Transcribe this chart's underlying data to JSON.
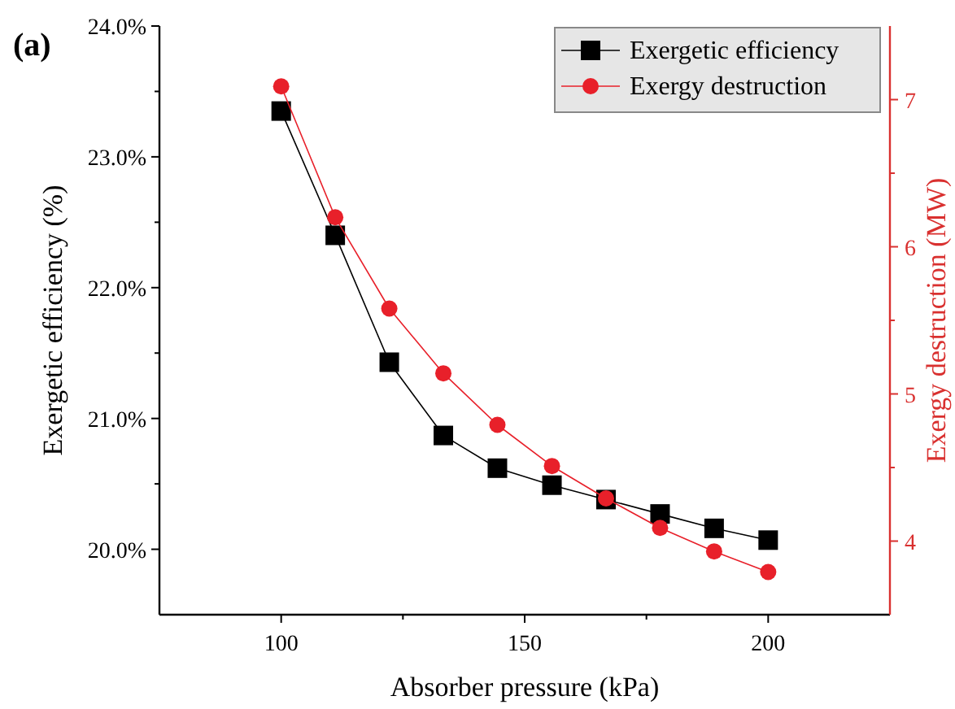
{
  "chart_data": {
    "type": "line",
    "xlabel": "Absorber pressure (kPa)",
    "ylabel": "Exergetic efficiency (%)",
    "y2label": "Exergy destruction (MW)",
    "annotations": [
      "(a)"
    ],
    "x": [
      100,
      111.1,
      122.2,
      133.3,
      144.4,
      155.6,
      166.7,
      177.8,
      188.9,
      200
    ],
    "xlim": [
      75,
      225
    ],
    "xticks": [
      100,
      {
        "value": 125,
        "label": null
      },
      150,
      {
        "value": 175,
        "label": null
      },
      200
    ],
    "ylim": [
      19.5,
      24
    ],
    "yticks": [
      {
        "value": 20,
        "label": "20.0%"
      },
      {
        "value": 20.5,
        "label": null
      },
      {
        "value": 21,
        "label": "21.0%"
      },
      {
        "value": 21.5,
        "label": null
      },
      {
        "value": 22,
        "label": "22.0%"
      },
      {
        "value": 22.5,
        "label": null
      },
      {
        "value": 23,
        "label": "23.0%"
      },
      {
        "value": 23.5,
        "label": null
      },
      {
        "value": 24,
        "label": "24.0%"
      }
    ],
    "y2lim": [
      3.5,
      7.5
    ],
    "y2ticks": [
      4,
      {
        "value": 4.5,
        "label": null
      },
      5,
      {
        "value": 5.5,
        "label": null
      },
      6,
      {
        "value": 6.5,
        "label": null
      },
      7
    ],
    "legend": "top right",
    "grid": false,
    "series": [
      {
        "name": "Exergetic efficiency",
        "color": "#000000",
        "marker": "square",
        "values": [
          23.35,
          22.4,
          21.43,
          20.87,
          20.62,
          20.49,
          20.38,
          20.27,
          20.16,
          20.07
        ]
      },
      {
        "name": "Exergy destruction",
        "color": "#e8202a",
        "marker": "circle",
        "axis": "y2",
        "values": [
          7.09,
          6.2,
          5.58,
          5.14,
          4.79,
          4.51,
          4.29,
          4.09,
          3.93,
          3.79
        ]
      }
    ]
  }
}
